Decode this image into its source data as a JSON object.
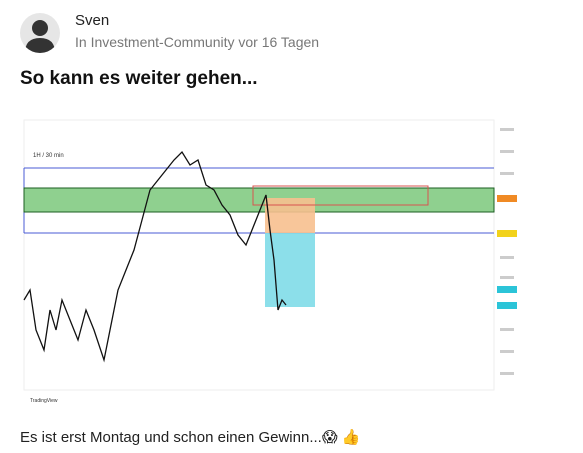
{
  "post": {
    "author": "Sven",
    "meta": "In Investment-Community vor 16 Tagen",
    "title": "So kann es weiter gehen...",
    "image": {
      "timeframe": "1H / 30 min",
      "watermark": "TradingView"
    },
    "body": "Es ist erst Montag und schon einen Gewinn...😱 👍"
  }
}
